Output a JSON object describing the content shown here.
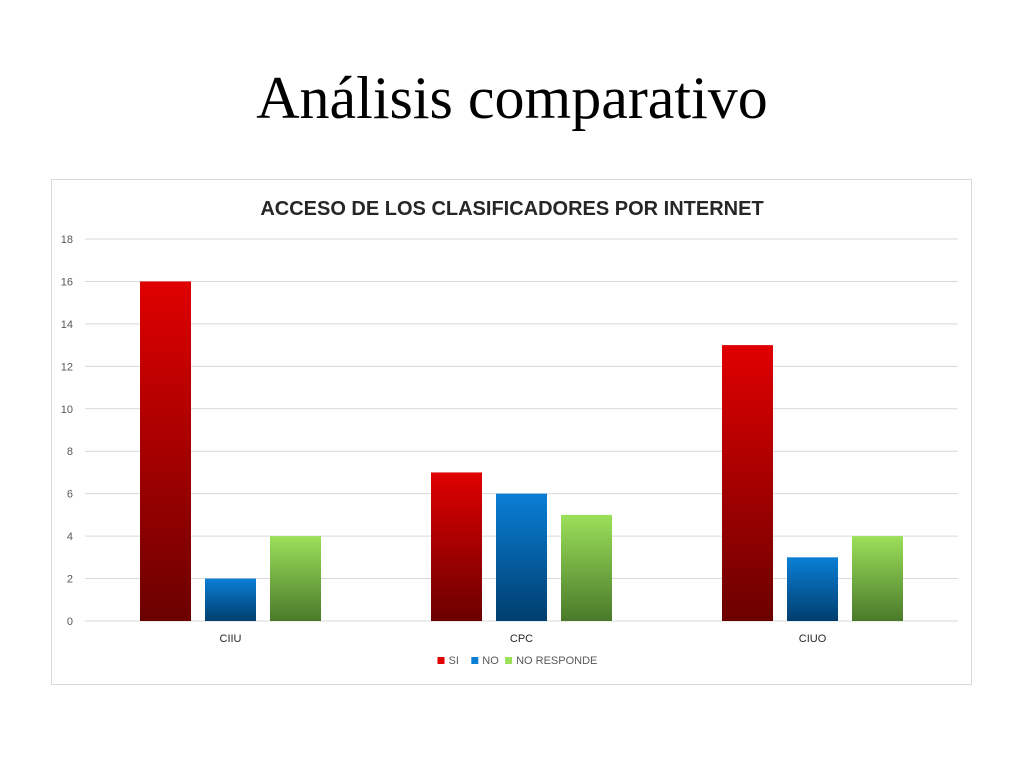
{
  "slide": {
    "title": "Análisis comparativo"
  },
  "chart_data": {
    "type": "bar",
    "title": "ACCESO DE LOS CLASIFICADORES POR INTERNET",
    "categories": [
      "CIIU",
      "CPC",
      "CIUO"
    ],
    "series": [
      {
        "name": "SI",
        "values": [
          16,
          7,
          13
        ],
        "color_top": "#e00000",
        "color_bottom": "#6b0000"
      },
      {
        "name": "NO",
        "values": [
          2,
          6,
          3
        ],
        "color_top": "#0a7fd6",
        "color_bottom": "#003e6e"
      },
      {
        "name": "NO RESPONDE",
        "values": [
          4,
          5,
          4
        ],
        "color_top": "#9be05a",
        "color_bottom": "#4a7a2a"
      }
    ],
    "ylim": [
      0,
      18
    ],
    "yticks": [
      0,
      2,
      4,
      6,
      8,
      10,
      12,
      14,
      16,
      18
    ],
    "xlabel": "",
    "ylabel": "",
    "grid": true,
    "legend": "bottom"
  }
}
